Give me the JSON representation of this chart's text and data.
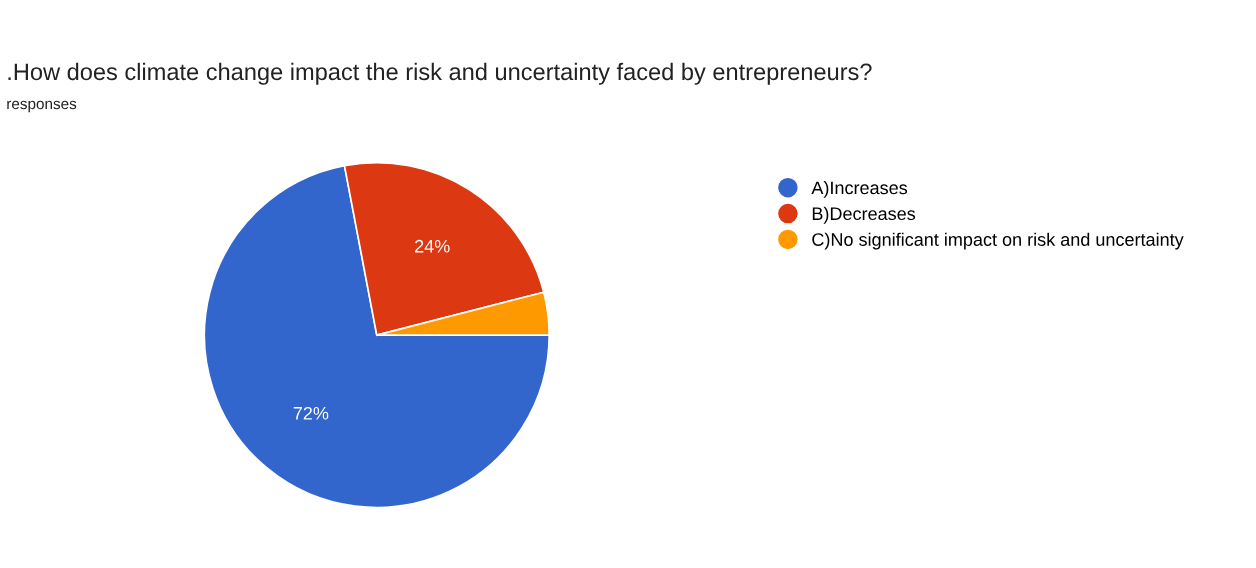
{
  "chart_data": {
    "type": "pie",
    "title": ".How does climate change impact the risk and uncertainty faced by entrepreneurs?",
    "subtitle": "responses",
    "categories": [
      "A)Increases",
      "B)Decreases",
      "C)No significant impact on risk and uncertainty"
    ],
    "values": [
      72,
      24,
      4
    ],
    "colors": [
      "#3366cc",
      "#dc3912",
      "#ff9900"
    ],
    "value_labels": [
      "72%",
      "24%",
      null
    ],
    "legend": "right"
  }
}
